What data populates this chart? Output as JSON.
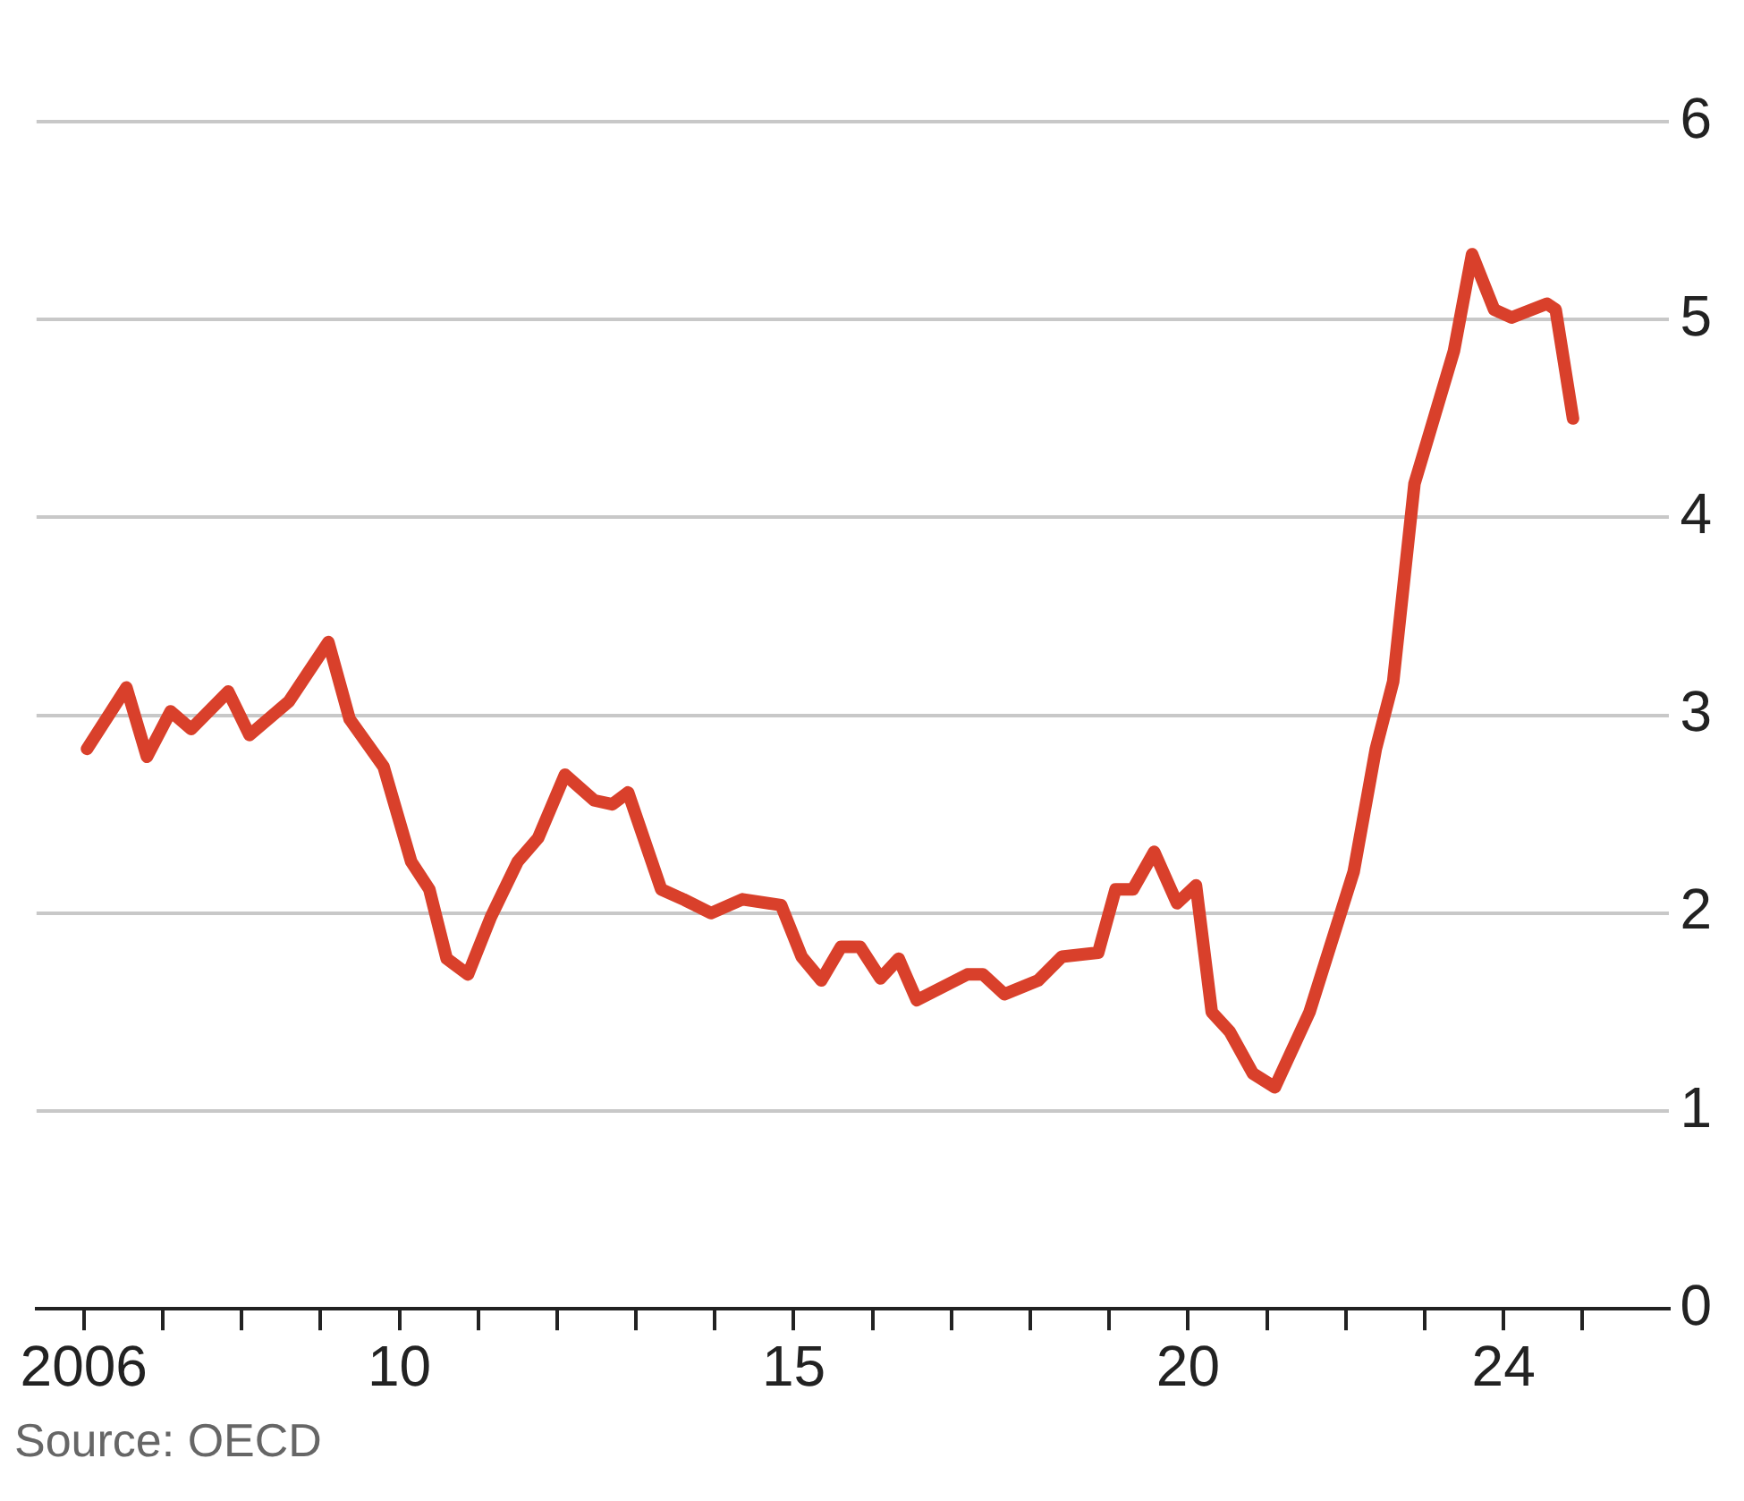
{
  "chart_data": {
    "type": "line",
    "annotations": [
      "Source: OECD"
    ],
    "x": [
      2006.04,
      2006.54,
      2006.8,
      2007.1,
      2007.36,
      2007.83,
      2008.1,
      2008.6,
      2009.1,
      2009.37,
      2009.8,
      2010.15,
      2010.38,
      2010.6,
      2010.87,
      2011.16,
      2011.5,
      2011.76,
      2012.1,
      2012.47,
      2012.7,
      2012.9,
      2013.32,
      2013.6,
      2013.95,
      2014.35,
      2014.84,
      2015.1,
      2015.35,
      2015.6,
      2015.84,
      2016.1,
      2016.33,
      2016.56,
      2017.2,
      2017.4,
      2017.67,
      2018.1,
      2018.4,
      2018.86,
      2019.08,
      2019.3,
      2019.57,
      2019.86,
      2020.1,
      2020.3,
      2020.53,
      2020.82,
      2021.1,
      2021.54,
      2022.1,
      2022.38,
      2022.6,
      2022.87,
      2023.37,
      2023.6,
      2023.88,
      2024.1,
      2024.55,
      2024.66,
      2024.88
    ],
    "series": [
      {
        "color": "#d9402b",
        "values": [
          2.83,
          3.14,
          2.79,
          3.02,
          2.93,
          3.12,
          2.9,
          3.07,
          3.37,
          2.98,
          2.74,
          2.26,
          2.12,
          1.77,
          1.69,
          1.98,
          2.26,
          2.38,
          2.7,
          2.57,
          2.55,
          2.61,
          2.12,
          2.07,
          2.0,
          2.07,
          2.04,
          1.78,
          1.66,
          1.83,
          1.83,
          1.67,
          1.77,
          1.56,
          1.69,
          1.69,
          1.59,
          1.66,
          1.78,
          1.8,
          2.12,
          2.12,
          2.31,
          2.05,
          2.14,
          1.5,
          1.4,
          1.19,
          1.12,
          1.5,
          2.21,
          2.83,
          3.17,
          4.17,
          4.84,
          5.33,
          5.05,
          5.01,
          5.08,
          5.05,
          4.5
        ]
      }
    ],
    "xlim": [
      2005.4,
      2026.1
    ],
    "xticks": [
      {
        "value": 2006,
        "label": "2006"
      },
      {
        "value": 2007,
        "label": null
      },
      {
        "value": 2008,
        "label": null
      },
      {
        "value": 2009,
        "label": null
      },
      {
        "value": 2010,
        "label": "10"
      },
      {
        "value": 2011,
        "label": null
      },
      {
        "value": 2012,
        "label": null
      },
      {
        "value": 2013,
        "label": null
      },
      {
        "value": 2014,
        "label": null
      },
      {
        "value": 2015,
        "label": "15"
      },
      {
        "value": 2016,
        "label": null
      },
      {
        "value": 2017,
        "label": null
      },
      {
        "value": 2018,
        "label": null
      },
      {
        "value": 2019,
        "label": null
      },
      {
        "value": 2020,
        "label": "20"
      },
      {
        "value": 2021,
        "label": null
      },
      {
        "value": 2022,
        "label": null
      },
      {
        "value": 2023,
        "label": null
      },
      {
        "value": 2024,
        "label": "24"
      },
      {
        "value": 2025,
        "label": null
      }
    ],
    "ylim": [
      0,
      6
    ],
    "yticks": [
      0,
      1,
      2,
      3,
      4,
      5,
      6
    ],
    "grid": "y",
    "marker": "none",
    "line_style": "solid"
  }
}
